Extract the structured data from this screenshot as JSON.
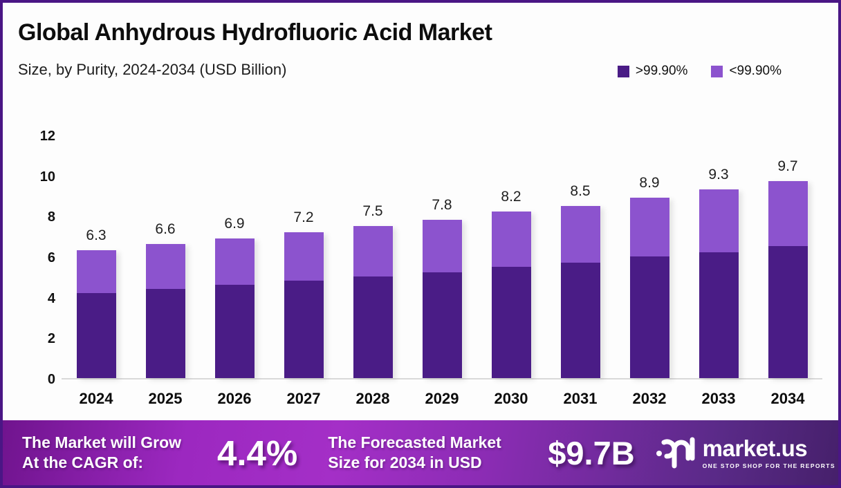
{
  "page": {
    "title": "Global Anhydrous Hydrofluoric Acid Market",
    "subtitle": "Size, by Purity, 2024-2034 (USD Billion)"
  },
  "colors": {
    "series_dark": "#4a1c86",
    "series_light": "#8c53ce",
    "page_border": "#4a1685",
    "axis_line": "#d9d9d9",
    "banner_gradient_start": "#70148e",
    "banner_gradient_mid": "#a42fc7",
    "banner_gradient_end": "#46206b"
  },
  "legend": [
    {
      "label": ">99.90%",
      "color": "#4a1c86"
    },
    {
      "label": "<99.90%",
      "color": "#8c53ce"
    }
  ],
  "chart_data": {
    "type": "bar",
    "stacked": true,
    "title": "Global Anhydrous Hydrofluoric Acid Market Size, by Purity, 2024-2034 (USD Billion)",
    "xlabel": "",
    "ylabel": "",
    "categories": [
      "2024",
      "2025",
      "2026",
      "2027",
      "2028",
      "2029",
      "2030",
      "2031",
      "2032",
      "2033",
      "2034"
    ],
    "series": [
      {
        "name": ">99.90%",
        "color": "#4a1c86",
        "values": [
          4.2,
          4.4,
          4.6,
          4.8,
          5.0,
          5.2,
          5.5,
          5.7,
          6.0,
          6.2,
          6.5
        ]
      },
      {
        "name": "<99.90%",
        "color": "#8c53ce",
        "values": [
          2.1,
          2.2,
          2.3,
          2.4,
          2.5,
          2.6,
          2.7,
          2.8,
          2.9,
          3.1,
          3.2
        ]
      }
    ],
    "totals": [
      6.3,
      6.6,
      6.9,
      7.2,
      7.5,
      7.8,
      8.2,
      8.5,
      8.9,
      9.3,
      9.7
    ],
    "total_labels": [
      "6.3",
      "6.6",
      "6.9",
      "7.2",
      "7.5",
      "7.8",
      "8.2",
      "8.5",
      "8.9",
      "9.3",
      "9.7"
    ],
    "y_ticks": [
      0,
      2,
      4,
      6,
      8,
      10,
      12
    ],
    "ylim": [
      0,
      12
    ],
    "grid": false,
    "legend_position": "top-right"
  },
  "banner": {
    "growth_text_line1": "The Market will Grow",
    "growth_text_line2": "At the CAGR of:",
    "cagr_value": "4.4%",
    "forecast_text_line1": "The Forecasted Market",
    "forecast_text_line2": "Size for 2034 in USD",
    "forecast_value": "$9.7B",
    "logo_text": "market.us",
    "logo_tagline": "ONE STOP SHOP FOR THE REPORTS"
  }
}
